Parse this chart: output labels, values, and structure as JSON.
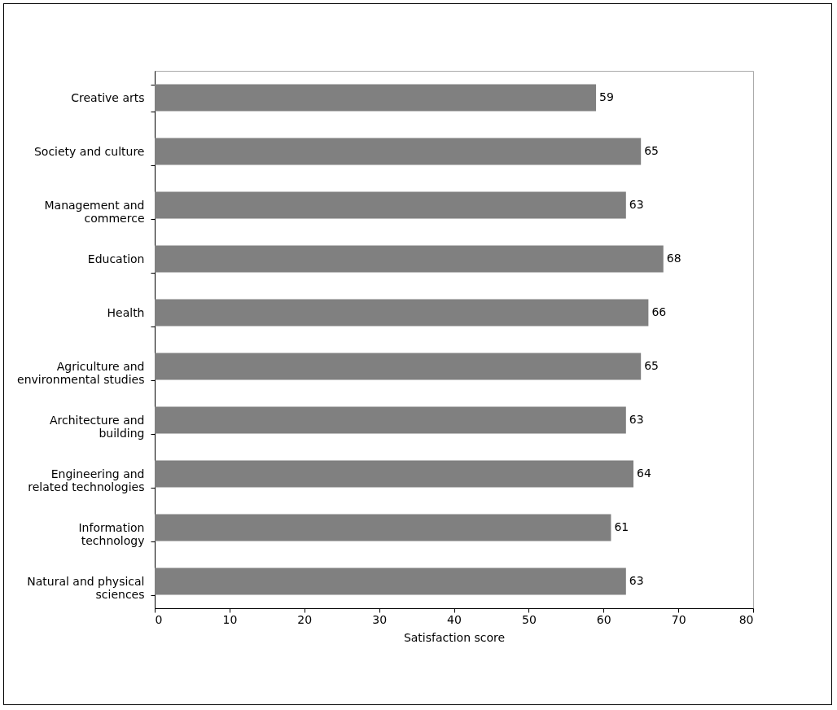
{
  "chart_data": {
    "type": "bar",
    "orientation": "horizontal",
    "categories": [
      "Creative arts",
      "Society and culture",
      "Management and commerce",
      "Education",
      "Health",
      "Agriculture and environmental studies",
      "Architecture and building",
      "Engineering and related technologies",
      "Information technology",
      "Natural and physical sciences"
    ],
    "values": [
      59,
      65,
      63,
      68,
      66,
      65,
      63,
      64,
      61,
      63
    ],
    "color": "#808080",
    "xlim": [
      0,
      80
    ],
    "xticks": [
      0,
      10,
      20,
      30,
      40,
      50,
      60,
      70,
      80
    ],
    "xlabel": "Satisfaction score",
    "data_labels": true,
    "grid": false
  }
}
